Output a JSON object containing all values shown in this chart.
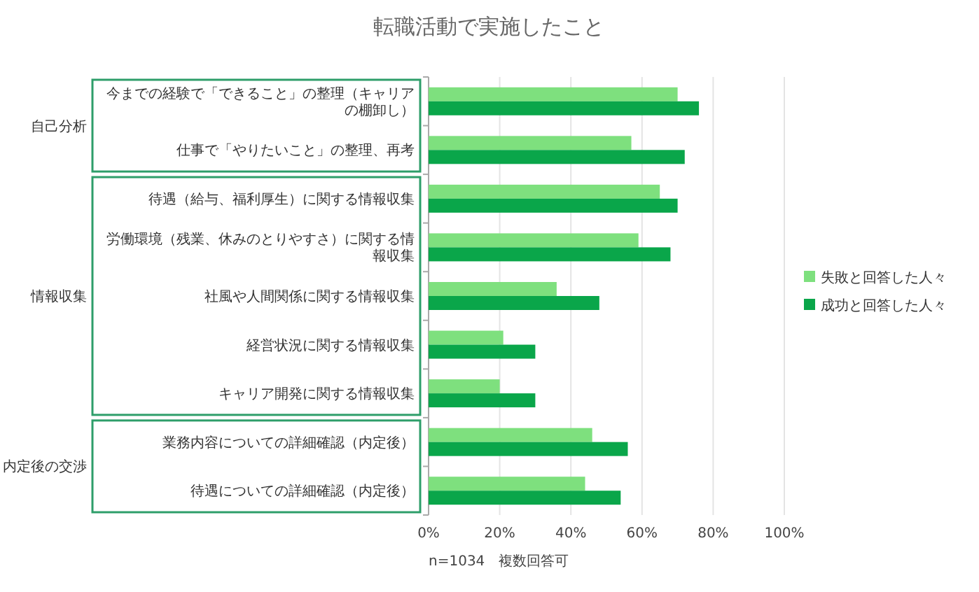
{
  "chart_data": {
    "type": "bar",
    "orientation": "horizontal",
    "title": "転職活動で実施したこと",
    "categories": [
      "今までの経験で「できること」の整理（キャリアの棚卸し）",
      "仕事で「やりたいこと」の整理、再考",
      "待遇（給与、福利厚生）に関する情報収集",
      "労働環境（残業、休みのとりやすさ）に関する情報収集",
      "社風や人間関係に関する情報収集",
      "経営状況に関する情報収集",
      "キャリア開発に関する情報収集",
      "業務内容についての詳細確認（内定後）",
      "待遇についての詳細確認（内定後）"
    ],
    "series": [
      {
        "name": "失敗と回答した人々",
        "color": "#7ee07e",
        "values": [
          70,
          57,
          65,
          59,
          36,
          21,
          20,
          46,
          44
        ]
      },
      {
        "name": "成功と回答した人々",
        "color": "#0aa64a",
        "values": [
          76,
          72,
          70,
          68,
          48,
          30,
          30,
          56,
          54
        ]
      }
    ],
    "xlim": [
      0,
      100
    ],
    "xticks": [
      {
        "value": 0,
        "label": "0%"
      },
      {
        "value": 20,
        "label": "20%"
      },
      {
        "value": 40,
        "label": "40%"
      },
      {
        "value": 60,
        "label": "60%"
      },
      {
        "value": 80,
        "label": "80%"
      },
      {
        "value": 100,
        "label": "100%"
      }
    ],
    "grid": "x",
    "legend": "right",
    "annotations": [
      "自己分析",
      "情報収集",
      "内定後の交渉",
      "n=1034　複数回答可"
    ]
  }
}
